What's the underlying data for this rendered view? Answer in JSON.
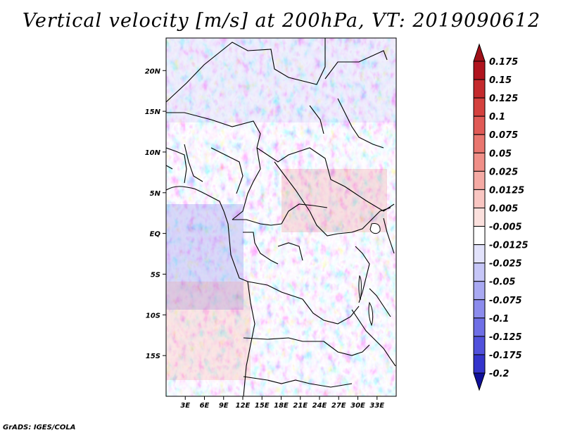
{
  "title": "Vertical velocity [m/s] at 200hPa, VT: 2019090612",
  "footer": "GrADS: IGES/COLA",
  "map": {
    "lon_range": [
      0,
      36
    ],
    "lat_range": [
      -20,
      24
    ],
    "lon_ticks": [
      {
        "value": 3,
        "label": "3E"
      },
      {
        "value": 6,
        "label": "6E"
      },
      {
        "value": 9,
        "label": "9E"
      },
      {
        "value": 12,
        "label": "12E"
      },
      {
        "value": 15,
        "label": "15E"
      },
      {
        "value": 18,
        "label": "18E"
      },
      {
        "value": 21,
        "label": "21E"
      },
      {
        "value": 24,
        "label": "24E"
      },
      {
        "value": 27,
        "label": "27E"
      },
      {
        "value": 30,
        "label": "30E"
      },
      {
        "value": 33,
        "label": "33E"
      }
    ],
    "lat_ticks": [
      {
        "value": 20,
        "label": "20N"
      },
      {
        "value": 15,
        "label": "15N"
      },
      {
        "value": 10,
        "label": "10N"
      },
      {
        "value": 5,
        "label": "5N"
      },
      {
        "value": 0,
        "label": "EQ"
      },
      {
        "value": -5,
        "label": "5S"
      },
      {
        "value": -10,
        "label": "10S"
      },
      {
        "value": -15,
        "label": "15S"
      }
    ]
  },
  "colorbar": {
    "levels": [
      {
        "label": "0.175",
        "color": "#b0141e"
      },
      {
        "label": "0.15",
        "color": "#c42a2d"
      },
      {
        "label": "0.125",
        "color": "#d4413e"
      },
      {
        "label": "0.1",
        "color": "#e05a56"
      },
      {
        "label": "0.075",
        "color": "#e9766f"
      },
      {
        "label": "0.05",
        "color": "#f08f88"
      },
      {
        "label": "0.025",
        "color": "#f5aaa4"
      },
      {
        "label": "0.0125",
        "color": "#f9c6c2"
      },
      {
        "label": "0.005",
        "color": "#fbe0dd"
      },
      {
        "label": "-0.005",
        "color": "#ffffff"
      },
      {
        "label": "-0.0125",
        "color": "#e2e2fb"
      },
      {
        "label": "-0.025",
        "color": "#c6c6f7"
      },
      {
        "label": "-0.05",
        "color": "#a9a9f2"
      },
      {
        "label": "-0.075",
        "color": "#8c8ced"
      },
      {
        "label": "-0.1",
        "color": "#6f6fe6"
      },
      {
        "label": "-0.125",
        "color": "#5151dc"
      },
      {
        "label": "-0.175",
        "color": "#3434cc"
      },
      {
        "label": "-0.2",
        "color": "#1d1db6"
      }
    ],
    "top_color": "#a01018",
    "bottom_color": "#10109a"
  }
}
